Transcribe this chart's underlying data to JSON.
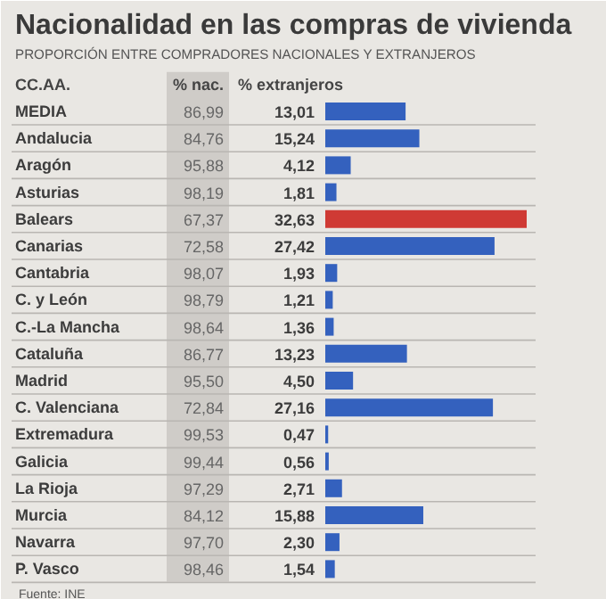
{
  "chart_data": {
    "type": "bar",
    "orientation": "horizontal",
    "title": "Nacionalidad en las compras de vivienda",
    "subtitle": "PROPORCIÓN ENTRE COMPRADORES NACIONALES Y EXTRANJEROS",
    "ylabel": "CC.AA.",
    "categories": [
      "MEDIA",
      "Andalucia",
      "Aragón",
      "Asturias",
      "Balears",
      "Canarias",
      "Cantabria",
      "C. y León",
      "C.-La Mancha",
      "Cataluña",
      "Madrid",
      "C. Valenciana",
      "Extremadura",
      "Galicia",
      "La Rioja",
      "Murcia",
      "Navarra",
      "P. Vasco"
    ],
    "series": [
      {
        "name": "% extranjeros",
        "colors": [
          "#3461be",
          "#3461be",
          "#3461be",
          "#3461be",
          "#cf3a34",
          "#3461be",
          "#3461be",
          "#3461be",
          "#3461be",
          "#3461be",
          "#3461be",
          "#3461be",
          "#3461be",
          "#3461be",
          "#3461be",
          "#3461be",
          "#3461be",
          "#3461be"
        ],
        "values": [
          13.01,
          15.24,
          4.12,
          1.81,
          32.63,
          27.42,
          1.93,
          1.21,
          1.36,
          13.23,
          4.5,
          27.16,
          0.47,
          0.56,
          2.71,
          15.88,
          2.3,
          1.54
        ],
        "value_labels": [
          "13,01",
          "15,24",
          "4,12",
          "1,81",
          "32,63",
          "27,42",
          "1,93",
          "1,21",
          "1,36",
          "13,23",
          "4,50",
          "27,16",
          "0,47",
          "0,56",
          "2,71",
          "15,88",
          "2,30",
          "1,54"
        ]
      }
    ],
    "annotations": [
      "% nac.",
      "86,99",
      "84,76",
      "95,88",
      "98,19",
      "67,37",
      "72,58",
      "98,07",
      "98,79",
      "98,64",
      "86,77",
      "95,50",
      "72,84",
      "99,53",
      "99,44",
      "97,29",
      "84,12",
      "97,70",
      "98,46",
      "Fuente: INE"
    ]
  }
}
